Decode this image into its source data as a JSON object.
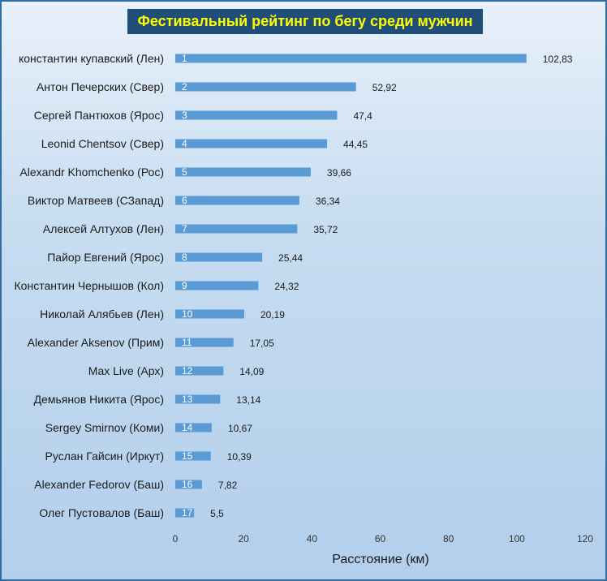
{
  "chart_data": {
    "type": "bar",
    "orientation": "horizontal",
    "title": "Фестивальный  рейтинг по бегу среди мужчин",
    "xlabel": "Расстояние (км)",
    "ylabel": "",
    "xlim": [
      0,
      120
    ],
    "xticks": [
      0,
      20,
      40,
      60,
      80,
      100,
      120
    ],
    "grid": false,
    "bar_color": "#5b9bd5",
    "categories": [
      "константин купавский (Лен)",
      "Антон Печерских (Свер)",
      "Сергей Пантюхов (Ярос)",
      "Leonid Chentsov (Свер)",
      "Alexandr Khomchenko (Рос)",
      "Виктор Матвеев (СЗапад)",
      "Алексей Алтухов (Лен)",
      "Пайор Евгений (Ярос)",
      "Константин Чернышов (Кол)",
      "Николай Алябьев (Лен)",
      "Alexander Aksenov (Прим)",
      "Max Live (Арх)",
      "Демьянов Никита (Ярос)",
      "Sergey Smirnov (Коми)",
      "Руслан Гайсин (Иркут)",
      "Alexander Fedorov (Баш)",
      "Олег Пустовалов (Баш)"
    ],
    "ranks": [
      "1",
      "2",
      "3",
      "4",
      "5",
      "6",
      "7",
      "8",
      "9",
      "10",
      "11",
      "12",
      "13",
      "14",
      "15",
      "16",
      "17"
    ],
    "values": [
      102.83,
      52.92,
      47.4,
      44.45,
      39.66,
      36.34,
      35.72,
      25.44,
      24.32,
      20.19,
      17.05,
      14.09,
      13.14,
      10.67,
      10.39,
      7.82,
      5.5
    ],
    "value_labels": [
      "102,83",
      "52,92",
      "47,4",
      "44,45",
      "39,66",
      "36,34",
      "35,72",
      "25,44",
      "24,32",
      "20,19",
      "17,05",
      "14,09",
      "13,14",
      "10,67",
      "10,39",
      "7,82",
      "5,5"
    ]
  }
}
